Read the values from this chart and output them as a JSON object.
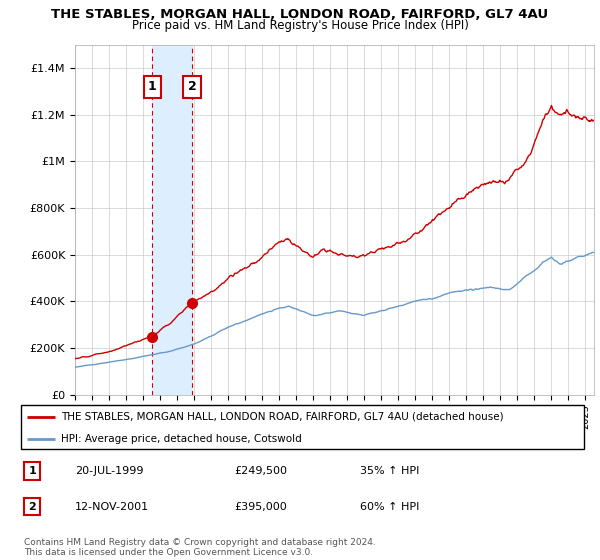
{
  "title": "THE STABLES, MORGAN HALL, LONDON ROAD, FAIRFORD, GL7 4AU",
  "subtitle": "Price paid vs. HM Land Registry's House Price Index (HPI)",
  "legend_line1": "THE STABLES, MORGAN HALL, LONDON ROAD, FAIRFORD, GL7 4AU (detached house)",
  "legend_line2": "HPI: Average price, detached house, Cotswold",
  "footnote": "Contains HM Land Registry data © Crown copyright and database right 2024.\nThis data is licensed under the Open Government Licence v3.0.",
  "purchase1_date": "20-JUL-1999",
  "purchase1_price": "£249,500",
  "purchase1_hpi": "35% ↑ HPI",
  "purchase2_date": "12-NOV-2001",
  "purchase2_price": "£395,000",
  "purchase2_hpi": "60% ↑ HPI",
  "purchase1_year": 1999.54,
  "purchase1_value": 249500,
  "purchase2_year": 2001.87,
  "purchase2_value": 395000,
  "red_color": "#cc0000",
  "blue_color": "#6699cc",
  "highlight_color": "#ddeeff",
  "box_border_color": "#cc0000",
  "ylim_max": 1500000,
  "yticks": [
    0,
    200000,
    400000,
    600000,
    800000,
    1000000,
    1200000,
    1400000
  ],
  "ytick_labels": [
    "£0",
    "£200K",
    "£400K",
    "£600K",
    "£800K",
    "£1M",
    "£1.2M",
    "£1.4M"
  ],
  "xstart": 1995.0,
  "xend": 2025.5
}
